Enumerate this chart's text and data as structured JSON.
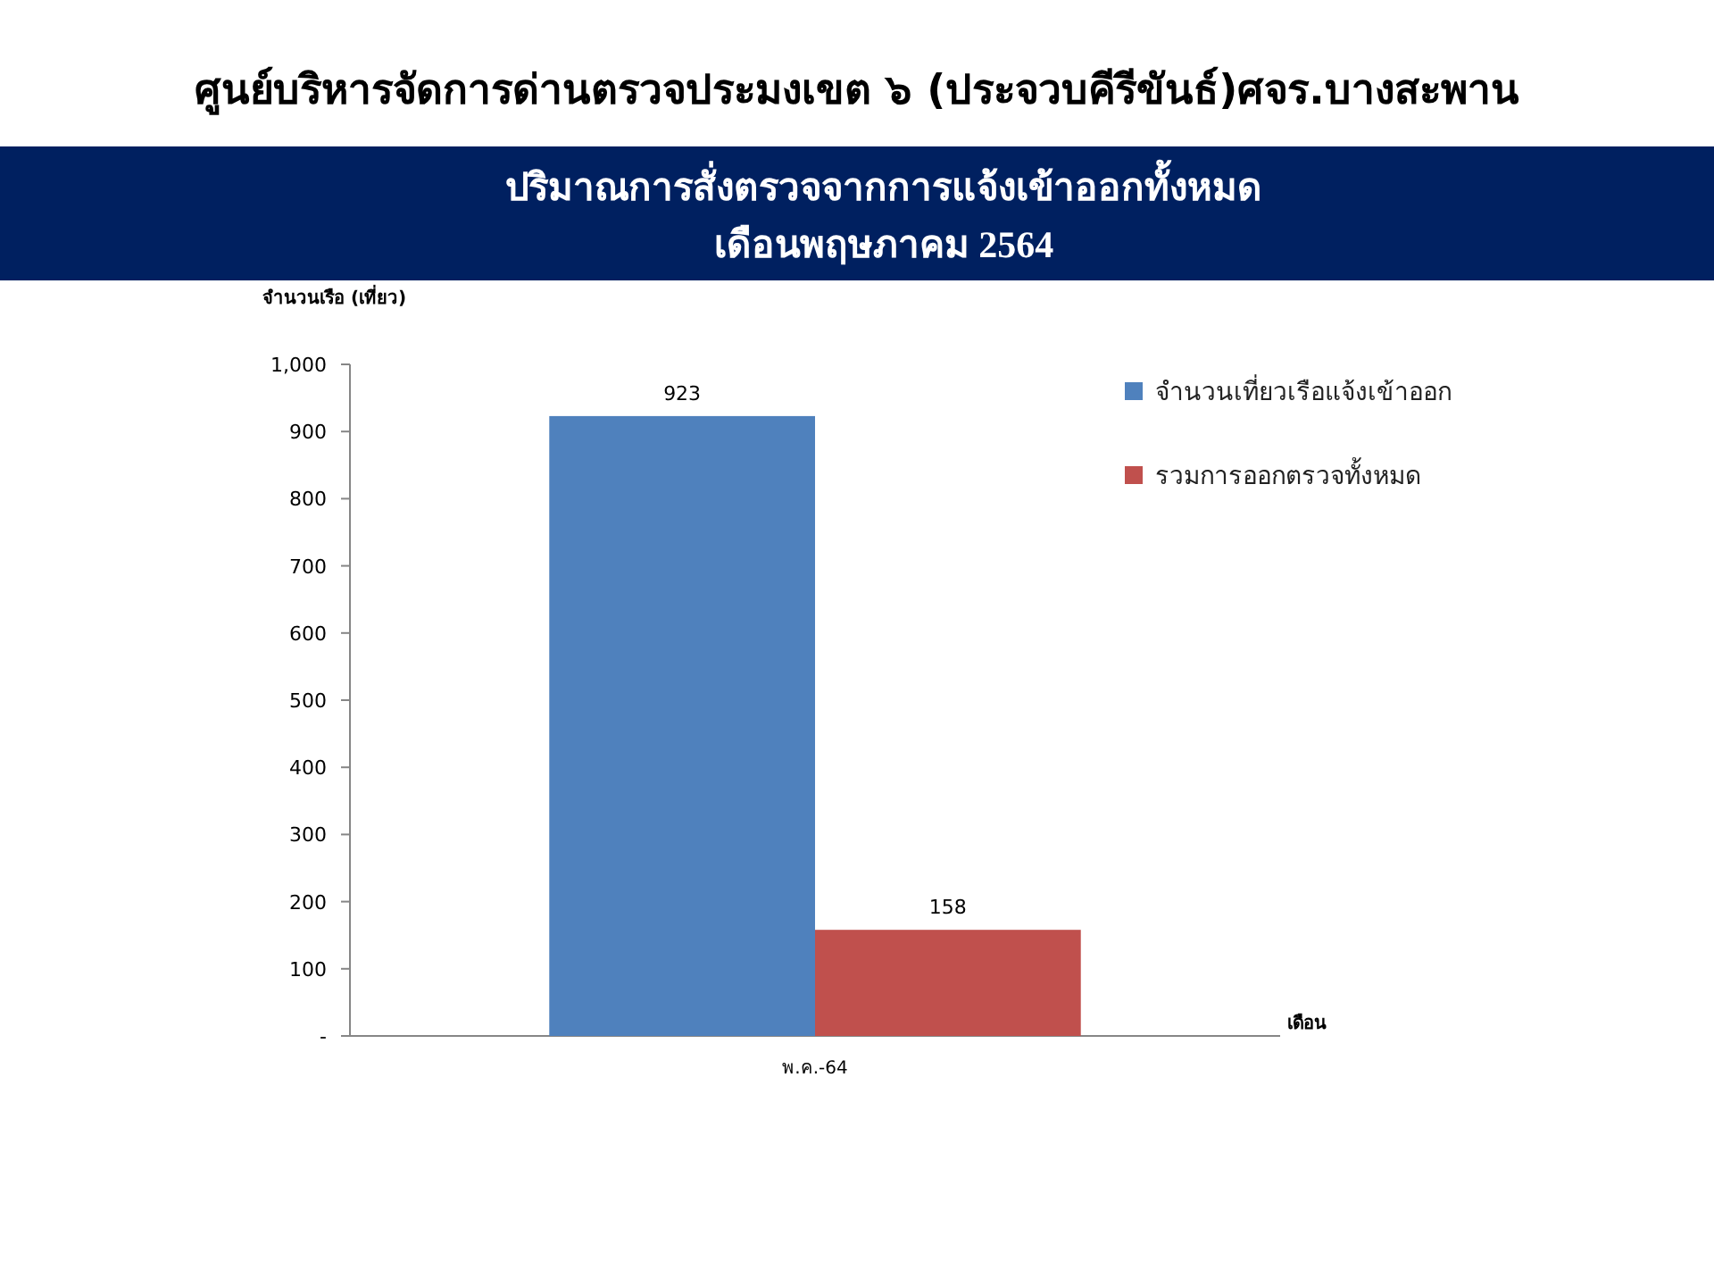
{
  "chart_data": {
    "type": "bar",
    "title": "ศูนย์บริหารจัดการด่านตรวจประมงเขต  ๖ (ประจวบคีรีขันธ์)ศจร.บางสะพาน",
    "subtitle": "ปริมาณการสั่งตรวจจากการแจ้งเข้าออกทั้งหมด\nเดือนพฤษภาคม 2564",
    "ylabel": "จำนวนเรือ (เที่ยว)",
    "xlabel": "เดือน",
    "categories": [
      "พ.ค.-64"
    ],
    "series": [
      {
        "name": "จำนวนเที่ยวเรือแจ้งเข้าออก",
        "color": "#4f81bd",
        "values": [
          923
        ]
      },
      {
        "name": "รวมการออกตรวจทั้งหมด",
        "color": "#c0504d",
        "values": [
          158
        ]
      }
    ],
    "ylim": [
      0,
      1000
    ],
    "yticks": [
      {
        "value": 0,
        "label": "-"
      },
      100,
      200,
      300,
      400,
      500,
      600,
      700,
      800,
      900,
      {
        "value": 1000,
        "label": "1,000"
      }
    ],
    "data_labels": true,
    "legend": "top right"
  }
}
